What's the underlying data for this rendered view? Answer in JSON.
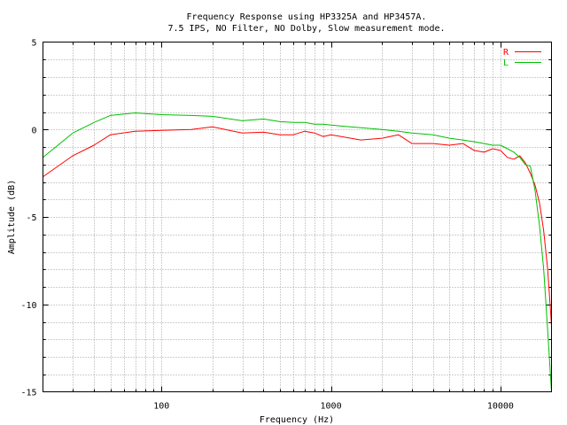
{
  "chart_data": {
    "type": "line",
    "title": "Frequency Response using HP3325A and HP3457A.",
    "subtitle": "7.5 IPS, NO Filter, NO Dolby, Slow measurement mode.",
    "xlabel": "Frequency (Hz)",
    "ylabel": "Amplitude (dB)",
    "xscale": "log",
    "xlim": [
      20,
      20000
    ],
    "ylim": [
      -15,
      5
    ],
    "xticks": [
      100,
      1000,
      10000
    ],
    "xtick_labels": [
      "100",
      "1000",
      "10000"
    ],
    "yticks": [
      5,
      0,
      -5,
      -10,
      -15
    ],
    "ytick_labels": [
      "5",
      "0",
      "-5",
      "-10",
      "-15"
    ],
    "grid": true,
    "legend": "top-right",
    "series": [
      {
        "name": "R",
        "color": "#ff0000",
        "x": [
          20,
          30,
          40,
          50,
          70,
          100,
          150,
          200,
          300,
          400,
          500,
          600,
          700,
          800,
          900,
          1000,
          1500,
          2000,
          2500,
          3000,
          4000,
          5000,
          6000,
          7000,
          8000,
          9000,
          10000,
          11000,
          12000,
          13000,
          14000,
          15000,
          16000,
          17000,
          18000,
          19000,
          20000
        ],
        "values": [
          -2.7,
          -1.5,
          -0.9,
          -0.3,
          -0.1,
          -0.05,
          0.0,
          0.15,
          -0.2,
          -0.15,
          -0.3,
          -0.3,
          -0.1,
          -0.2,
          -0.4,
          -0.3,
          -0.6,
          -0.5,
          -0.3,
          -0.8,
          -0.8,
          -0.9,
          -0.8,
          -1.2,
          -1.3,
          -1.1,
          -1.2,
          -1.6,
          -1.7,
          -1.5,
          -1.9,
          -2.5,
          -3.2,
          -4.2,
          -5.8,
          -8.0,
          -11.2
        ]
      },
      {
        "name": "L",
        "color": "#00c000",
        "x": [
          20,
          30,
          40,
          50,
          70,
          100,
          150,
          200,
          300,
          400,
          500,
          600,
          700,
          800,
          900,
          1000,
          1500,
          2000,
          2500,
          3000,
          4000,
          5000,
          6000,
          7000,
          8000,
          9000,
          10000,
          11000,
          12000,
          13000,
          14000,
          15000,
          16000,
          17000,
          18000,
          19000,
          20000
        ],
        "values": [
          -1.6,
          -0.2,
          0.4,
          0.8,
          0.95,
          0.85,
          0.8,
          0.75,
          0.5,
          0.6,
          0.45,
          0.4,
          0.4,
          0.3,
          0.3,
          0.25,
          0.1,
          0.0,
          -0.1,
          -0.2,
          -0.3,
          -0.5,
          -0.6,
          -0.7,
          -0.8,
          -0.9,
          -0.9,
          -1.1,
          -1.3,
          -1.6,
          -2.0,
          -2.1,
          -3.5,
          -5.5,
          -8.0,
          -11.5,
          -15.0
        ]
      }
    ]
  }
}
